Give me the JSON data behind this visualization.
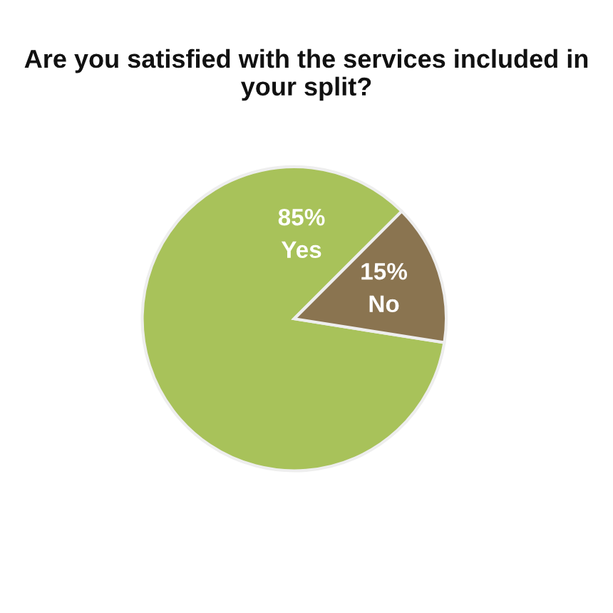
{
  "chart_data": {
    "type": "pie",
    "title": "Are you satisfied with the services included in your split?",
    "categories": [
      "Yes",
      "No"
    ],
    "values": [
      85,
      15
    ],
    "colors": [
      "#a8c25a",
      "#8a7450"
    ],
    "value_labels": [
      "85%",
      "15%"
    ]
  }
}
